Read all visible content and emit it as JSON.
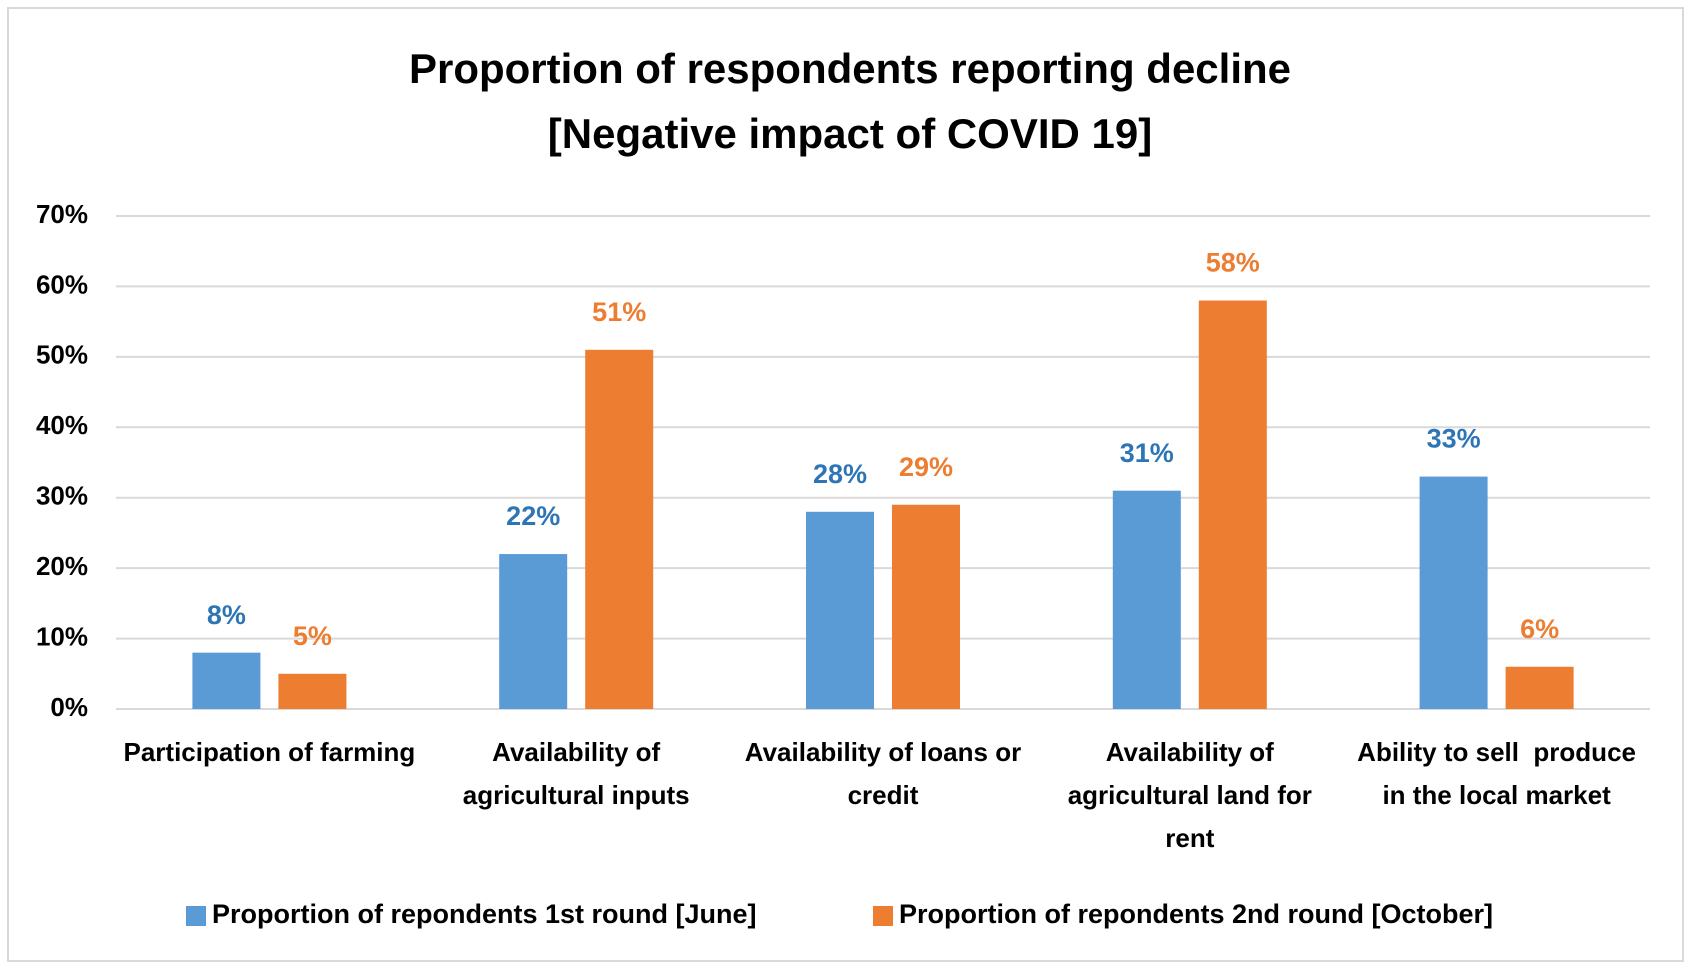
{
  "chart_data": {
    "type": "bar",
    "title": "Proportion of respondents reporting decline",
    "subtitle": "[Negative impact of COVID 19]",
    "categories": [
      "Participation of farming",
      "Availability of agricultural inputs",
      "Availability of loans or credit",
      "Availability of agricultural land for rent",
      "Ability to sell  produce in the local market"
    ],
    "series": [
      {
        "name": "Proportion of repondents 1st round [June]",
        "color": "#5b9bd5",
        "label_color": "#2e75b6",
        "values": [
          8,
          22,
          28,
          31,
          33
        ],
        "value_labels": [
          "8%",
          "22%",
          "28%",
          "31%",
          "33%"
        ]
      },
      {
        "name": "Proportion of repondents 2nd round [October]",
        "color": "#ed7d31",
        "label_color": "#ed7d31",
        "values": [
          5,
          51,
          29,
          58,
          6
        ],
        "value_labels": [
          "5%",
          "51%",
          "29%",
          "58%",
          "6%"
        ]
      }
    ],
    "ylim": [
      0,
      70
    ],
    "yticks": [
      {
        "value": 0,
        "label": "0%"
      },
      {
        "value": 10,
        "label": "10%"
      },
      {
        "value": 20,
        "label": "20%"
      },
      {
        "value": 30,
        "label": "30%"
      },
      {
        "value": 40,
        "label": "40%"
      },
      {
        "value": 50,
        "label": "50%"
      },
      {
        "value": 60,
        "label": "60%"
      },
      {
        "value": 70,
        "label": "70%"
      }
    ],
    "grid": true,
    "legend": "bottom"
  }
}
